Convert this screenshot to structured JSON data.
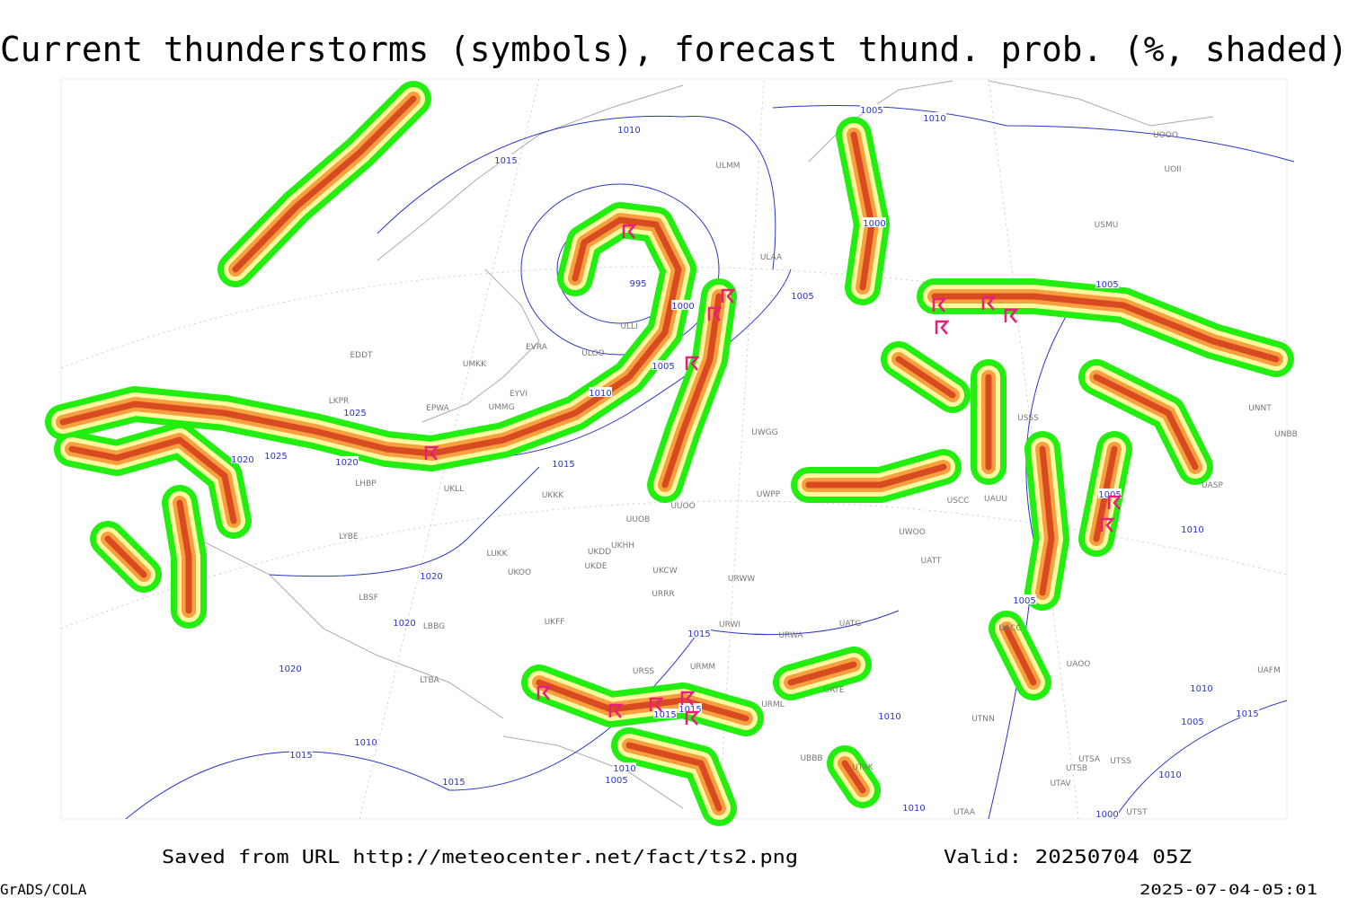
{
  "title": "Current thunderstorms (symbols), forecast thund. prob. (%, shaded)",
  "footer": {
    "source": "Saved from URL http://meteocenter.net/fact/ts2.png",
    "valid": "Valid: 20250704 05Z",
    "software": "GrADS/COLA",
    "timestamp": "2025-07-04-05:01"
  },
  "isobar_labels": [
    "1010",
    "1015",
    "1005",
    "1010",
    "1000",
    "1005",
    "995",
    "1000",
    "1005",
    "1010",
    "1025",
    "1020",
    "1025",
    "1020",
    "1015",
    "1020",
    "1020",
    "1020",
    "1015",
    "1010",
    "1015",
    "1015",
    "1015",
    "1015",
    "1010",
    "1005",
    "1010",
    "1010",
    "1005",
    "1005",
    "1005",
    "1010",
    "1010",
    "1005",
    "1015",
    "1010",
    "1000"
  ],
  "stations": [
    "ULMM",
    "ULAA",
    "ULLI",
    "EVRA",
    "ULOO",
    "UMKK",
    "EDDT",
    "EYVI",
    "UMMG",
    "EPWA",
    "LKPR",
    "UKLL",
    "LHBP",
    "UKKK",
    "UUOO",
    "UUOB",
    "UKHH",
    "UKDD",
    "LUKK",
    "LYBE",
    "UKOO",
    "UKDE",
    "UKCW",
    "URRR",
    "LBSF",
    "URWW",
    "URWI",
    "LBBG",
    "UKFF",
    "URWA",
    "UATG",
    "URSS",
    "URMM",
    "UATE",
    "LTBA",
    "URML",
    "UBBB",
    "UTAK",
    "UTNN",
    "UTAA",
    "UTSA",
    "UTSS",
    "UTSB",
    "UTAV",
    "UTST",
    "UAOO",
    "UACC",
    "UATT",
    "UWOO",
    "UWGG",
    "UWPP",
    "USCC",
    "UAUU",
    "USSS",
    "USMU",
    "UOOO",
    "UOII",
    "UNNT",
    "UNBB",
    "UASP",
    "UAFM"
  ]
}
